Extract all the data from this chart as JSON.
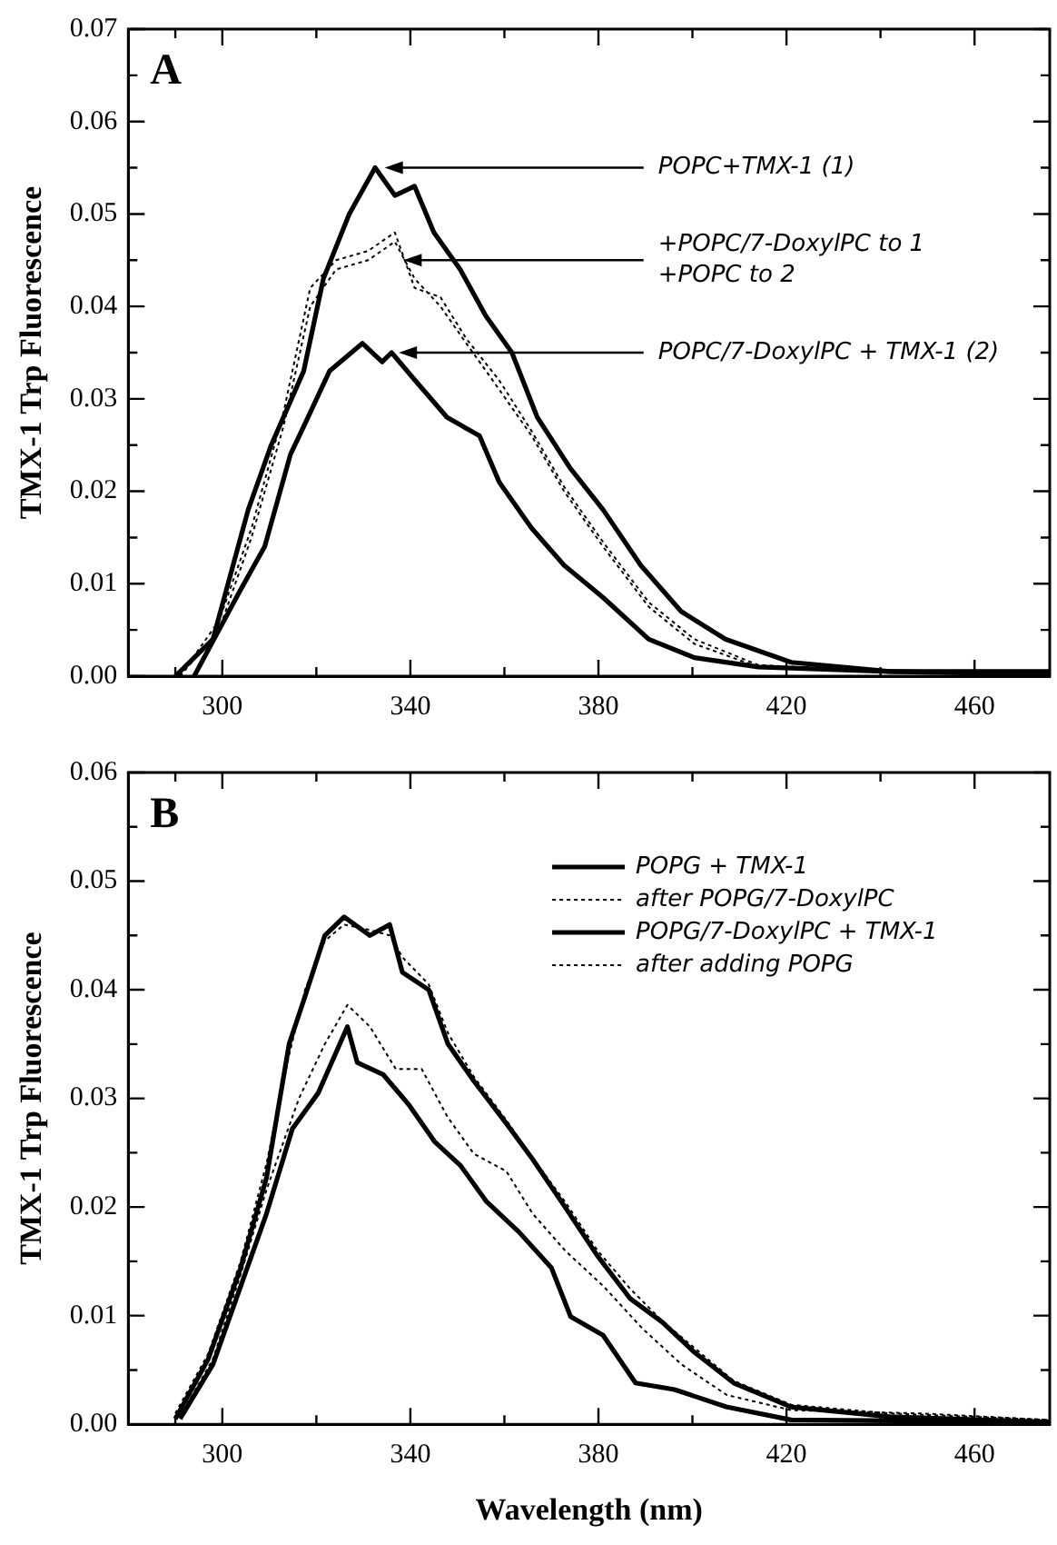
{
  "chart_data": [
    {
      "type": "line",
      "ylabel": "TMX-1 Trp Fluorescence",
      "annotations": [
        "A",
        {
          "text": "POPC+TMX-1 (1)",
          "x": 333,
          "y": 0.055
        },
        {
          "text": "+POPC/7-DoxylPC to 1\n+POPC to 2",
          "x": 337,
          "y": 0.045
        },
        {
          "text": "POPC/7-DoxylPC + TMX-1 (2)",
          "x": 336,
          "y": 0.035
        }
      ],
      "xlim": [
        280,
        476
      ],
      "ylim": [
        0,
        0.07
      ],
      "xticks": [
        {
          "value": 290,
          "label": null
        },
        300,
        {
          "value": 320,
          "label": null
        },
        340,
        {
          "value": 360,
          "label": null
        },
        380,
        {
          "value": 400,
          "label": null
        },
        420,
        {
          "value": 440,
          "label": null
        },
        460
      ],
      "yticks": [
        {
          "value": 0,
          "label": "0.00"
        },
        {
          "value": 0.005,
          "label": null
        },
        {
          "value": 0.01,
          "label": "0.01"
        },
        {
          "value": 0.015,
          "label": null
        },
        {
          "value": 0.02,
          "label": "0.02"
        },
        {
          "value": 0.025,
          "label": null
        },
        {
          "value": 0.03,
          "label": "0.03"
        },
        {
          "value": 0.035,
          "label": null
        },
        {
          "value": 0.04,
          "label": "0.04"
        },
        {
          "value": 0.045,
          "label": null
        },
        {
          "value": 0.05,
          "label": "0.05"
        },
        {
          "value": 0.055,
          "label": null
        },
        {
          "value": 0.06,
          "label": "0.06"
        },
        {
          "value": 0.065,
          "label": null
        },
        {
          "value": 0.07,
          "label": "0.07"
        }
      ],
      "marker": "none",
      "legend": false,
      "grid": false,
      "series": [
        {
          "color": "#000000",
          "line_style": "solid",
          "x": [
            290,
            298,
            305.5,
            310.4,
            317.3,
            321.5,
            327,
            332.5,
            336.7,
            340.9,
            345,
            350.6,
            356,
            361.6,
            367,
            374,
            381,
            389,
            397.6,
            407,
            421,
            442,
            476
          ],
          "values": [
            0,
            0.004,
            0.018,
            0.025,
            0.033,
            0.043,
            0.05,
            0.055,
            0.052,
            0.053,
            0.048,
            0.044,
            0.039,
            0.035,
            0.028,
            0.0225,
            0.018,
            0.012,
            0.007,
            0.004,
            0.0015,
            0.0005,
            0.0005
          ]
        },
        {
          "color": "#000000",
          "line_style": "dotted",
          "x": [
            291,
            299.3,
            306.2,
            313,
            318.7,
            324.2,
            331,
            336.7,
            340.9,
            346.4,
            351.9,
            358.9,
            365.8,
            372.7,
            381,
            390.7,
            400.4,
            414,
            442,
            476
          ],
          "values": [
            0,
            0.006,
            0.016,
            0.0285,
            0.042,
            0.045,
            0.046,
            0.048,
            0.042,
            0.041,
            0.0365,
            0.032,
            0.0265,
            0.0205,
            0.0145,
            0.008,
            0.004,
            0.0012,
            0.0005,
            0.0004
          ]
        },
        {
          "color": "#000000",
          "line_style": "dotted",
          "x": [
            291,
            299.3,
            306.2,
            313,
            318.7,
            324.2,
            331,
            336.7,
            340.9,
            346.4,
            351.9,
            358.9,
            365.8,
            372.7,
            381,
            390.7,
            400.4,
            414,
            442,
            476
          ],
          "values": [
            0,
            0.005,
            0.015,
            0.027,
            0.04,
            0.044,
            0.045,
            0.047,
            0.043,
            0.04,
            0.036,
            0.031,
            0.026,
            0.02,
            0.014,
            0.0075,
            0.0035,
            0.001,
            0.0004,
            0.0003
          ]
        },
        {
          "color": "#000000",
          "line_style": "solid",
          "x": [
            294,
            303.5,
            309,
            314.5,
            317.3,
            322.8,
            329.8,
            334,
            336,
            341,
            347.8,
            354.7,
            358.9,
            365.8,
            372.7,
            381,
            390.7,
            400.4,
            414,
            442,
            476
          ],
          "values": [
            0,
            0.009,
            0.014,
            0.024,
            0.027,
            0.033,
            0.036,
            0.034,
            0.035,
            0.032,
            0.028,
            0.026,
            0.021,
            0.016,
            0.012,
            0.0085,
            0.004,
            0.002,
            0.001,
            0.0005,
            0.0002
          ]
        }
      ]
    },
    {
      "type": "line",
      "ylabel": "TMX-1 Trp Fluorescence",
      "xlabel": "Wavelength (nm)",
      "annotations": [
        "B"
      ],
      "xlim": [
        280,
        476
      ],
      "ylim": [
        0,
        0.06
      ],
      "xticks": [
        {
          "value": 290,
          "label": null
        },
        300,
        {
          "value": 320,
          "label": null
        },
        340,
        {
          "value": 360,
          "label": null
        },
        380,
        {
          "value": 400,
          "label": null
        },
        420,
        {
          "value": 440,
          "label": null
        },
        460
      ],
      "yticks": [
        {
          "value": 0,
          "label": "0.00"
        },
        {
          "value": 0.005,
          "label": null
        },
        {
          "value": 0.01,
          "label": "0.01"
        },
        {
          "value": 0.015,
          "label": null
        },
        {
          "value": 0.02,
          "label": "0.02"
        },
        {
          "value": 0.025,
          "label": null
        },
        {
          "value": 0.03,
          "label": "0.03"
        },
        {
          "value": 0.035,
          "label": null
        },
        {
          "value": 0.04,
          "label": "0.04"
        },
        {
          "value": 0.045,
          "label": null
        },
        {
          "value": 0.05,
          "label": "0.05"
        },
        {
          "value": 0.055,
          "label": null
        },
        {
          "value": 0.06,
          "label": "0.06"
        }
      ],
      "marker": "none",
      "legend": "top right",
      "grid": false,
      "series": [
        {
          "name": "POPG + TMX-1",
          "color": "#000000",
          "line_style": "solid",
          "x": [
            290,
            297,
            303.9,
            309.4,
            314.2,
            317.6,
            321.8,
            325.9,
            331.4,
            335.6,
            338.3,
            343.9,
            348,
            353.5,
            360.4,
            366,
            372.9,
            379.8,
            386.7,
            393.6,
            400.5,
            408.8,
            421,
            442,
            476
          ],
          "values": [
            0.0005,
            0.006,
            0.0144,
            0.0227,
            0.035,
            0.0394,
            0.045,
            0.0467,
            0.045,
            0.046,
            0.0416,
            0.04,
            0.035,
            0.0316,
            0.0277,
            0.0244,
            0.02,
            0.0155,
            0.0116,
            0.0094,
            0.0066,
            0.0038,
            0.0016,
            0.0007,
            0.0002
          ]
        },
        {
          "name": "after POPG/7-DoxylPC",
          "color": "#000000",
          "line_style": "dotted",
          "x": [
            290,
            297,
            303.9,
            309.4,
            314.2,
            317.6,
            321.8,
            325.9,
            331.4,
            335.6,
            338.3,
            343.9,
            348,
            353.5,
            360.4,
            366,
            372.9,
            379.8,
            386.7,
            393.6,
            400.5,
            408.8,
            421,
            442,
            476
          ],
          "values": [
            0.001,
            0.0065,
            0.015,
            0.024,
            0.034,
            0.04,
            0.0445,
            0.046,
            0.0455,
            0.045,
            0.043,
            0.0405,
            0.036,
            0.032,
            0.028,
            0.0245,
            0.0205,
            0.016,
            0.0125,
            0.0095,
            0.007,
            0.004,
            0.0018,
            0.001,
            0.0004
          ]
        },
        {
          "name": "POPG/7-DoxylPC + TMX-1",
          "color": "#000000",
          "line_style": "solid",
          "x": [
            291,
            298,
            303.9,
            309.4,
            314.9,
            320.4,
            326.6,
            328.7,
            334.2,
            339.7,
            345.2,
            350.7,
            356.2,
            363.1,
            370,
            374.1,
            381,
            387.9,
            396.2,
            407.2,
            421,
            476
          ],
          "values": [
            0.0005,
            0.0055,
            0.0127,
            0.0194,
            0.0272,
            0.0305,
            0.0366,
            0.0333,
            0.0322,
            0.0294,
            0.026,
            0.0238,
            0.0205,
            0.0177,
            0.0144,
            0.0099,
            0.0082,
            0.0038,
            0.0032,
            0.0016,
            0.0004,
            0.0002
          ]
        },
        {
          "name": "after adding POPG",
          "color": "#000000",
          "line_style": "dotted",
          "x": [
            291,
            298,
            303.9,
            309.4,
            316.3,
            321.8,
            326.6,
            331.4,
            336.9,
            342.4,
            347.9,
            353.5,
            360.4,
            366,
            372.9,
            381.1,
            389.4,
            397.7,
            407.3,
            421,
            448.8,
            476
          ],
          "values": [
            0.0007,
            0.006,
            0.0138,
            0.0216,
            0.03,
            0.035,
            0.0386,
            0.0366,
            0.0327,
            0.0327,
            0.0283,
            0.0249,
            0.0233,
            0.0194,
            0.016,
            0.0127,
            0.0088,
            0.0055,
            0.0027,
            0.0013,
            0.001,
            0.0004
          ]
        }
      ]
    }
  ]
}
